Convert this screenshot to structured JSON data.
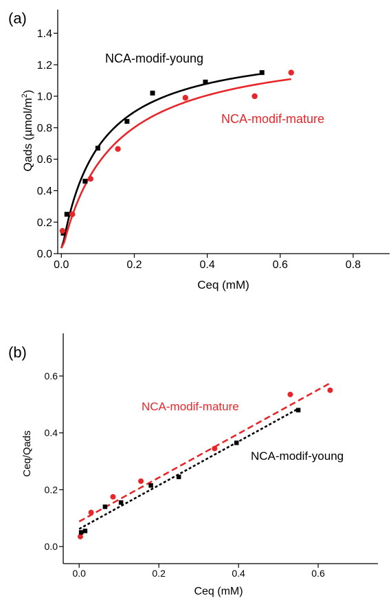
{
  "chart_data": [
    {
      "panel_label": "(a)",
      "type": "scatter",
      "xlabel": "Ceq (mM)",
      "ylabel": "Qads (µmol/m²)",
      "ylabel_parts": {
        "main": "Qads (µmol/m",
        "sup": "2",
        "close": ")"
      },
      "xlim": [
        -0.01,
        0.9
      ],
      "ylim": [
        0,
        1.55
      ],
      "xticks": [
        "0.0",
        "0.2",
        "0.4",
        "0.6",
        "0.8"
      ],
      "yticks": [
        "0.0",
        "0.2",
        "0.4",
        "0.6",
        "0.8",
        "1.0",
        "1.2",
        "1.4"
      ],
      "grid": false,
      "series": [
        {
          "name": "NCA-modif-young",
          "color": "#000000",
          "marker": "square",
          "x": [
            0.005,
            0.015,
            0.065,
            0.1,
            0.18,
            0.25,
            0.395,
            0.55
          ],
          "y": [
            0.13,
            0.25,
            0.46,
            0.67,
            0.84,
            1.02,
            1.09,
            1.15
          ],
          "fit": {
            "style": "solid",
            "x_range": [
              0.0,
              0.55
            ],
            "qmax": 1.35,
            "k": 10.0
          }
        },
        {
          "name": "NCA-modif-mature",
          "color": "#e8262a",
          "marker": "circle",
          "x": [
            0.003,
            0.03,
            0.08,
            0.155,
            0.34,
            0.53,
            0.63
          ],
          "y": [
            0.145,
            0.25,
            0.475,
            0.665,
            0.99,
            1.0,
            1.15
          ],
          "fit": {
            "style": "solid",
            "x_range": [
              0.0,
              0.63
            ],
            "qmax": 1.35,
            "k": 7.3
          }
        }
      ]
    },
    {
      "panel_label": "(b)",
      "type": "scatter",
      "xlabel": "Ceq (mM)",
      "ylabel": "Ceq/Qads",
      "xlim": [
        -0.04,
        0.75
      ],
      "ylim": [
        -0.06,
        0.75
      ],
      "xticks": [
        "0.0",
        "0.2",
        "0.4",
        "0.6"
      ],
      "yticks": [
        "0.0",
        "0.2",
        "0.4",
        "0.6"
      ],
      "grid": false,
      "series": [
        {
          "name": "NCA-modif-mature",
          "color": "#e8262a",
          "marker": "circle",
          "x": [
            0.003,
            0.03,
            0.085,
            0.155,
            0.34,
            0.53,
            0.63
          ],
          "y": [
            0.035,
            0.12,
            0.175,
            0.23,
            0.345,
            0.535,
            0.55
          ],
          "fit": {
            "style": "dashed",
            "x_range": [
              0.0,
              0.63
            ],
            "y_range": [
              0.088,
              0.575
            ]
          }
        },
        {
          "name": "NCA-modif-young",
          "color": "#000000",
          "marker": "square",
          "x": [
            0.005,
            0.015,
            0.065,
            0.105,
            0.18,
            0.25,
            0.395,
            0.55
          ],
          "y": [
            0.05,
            0.055,
            0.14,
            0.155,
            0.215,
            0.245,
            0.365,
            0.48
          ],
          "fit": {
            "style": "dotted",
            "x_range": [
              0.0,
              0.55
            ],
            "y_range": [
              0.062,
              0.485
            ]
          }
        }
      ]
    }
  ]
}
